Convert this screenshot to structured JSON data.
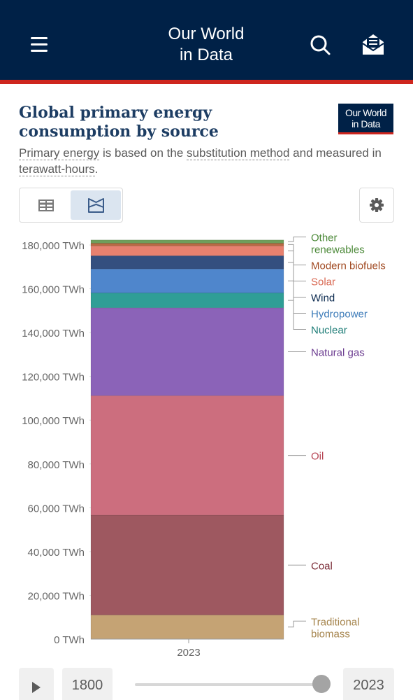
{
  "header": {
    "brand_line1": "Our World",
    "brand_line2": "in Data"
  },
  "logo": {
    "line1": "Our World",
    "line2": "in Data"
  },
  "title": "Global primary energy consumption by source",
  "subtitle": {
    "link1": "Primary energy",
    "text1": " is based on the ",
    "link2": "substitution method",
    "text2": " and measured in ",
    "link3": "terawatt-hours",
    "text3": "."
  },
  "timeline": {
    "start_year": "1800",
    "end_year": "2023",
    "position": 1.0
  },
  "colors": {
    "header_bg": "#002147",
    "accent_red": "#ce261e",
    "title": "#1d3d63"
  },
  "chart_data": {
    "type": "bar",
    "stacked": true,
    "categories": [
      "2023"
    ],
    "ylim": [
      0,
      180000
    ],
    "y_ticks": [
      "0 TWh",
      "20,000 TWh",
      "40,000 TWh",
      "60,000 TWh",
      "80,000 TWh",
      "100,000 TWh",
      "120,000 TWh",
      "140,000 TWh",
      "160,000 TWh",
      "180,000 TWh"
    ],
    "y_tick_values": [
      0,
      20000,
      40000,
      60000,
      80000,
      100000,
      120000,
      140000,
      160000,
      180000
    ],
    "grid": true,
    "series": [
      {
        "name": "Traditional biomass",
        "values": [
          11000
        ],
        "color": "#c5a374",
        "label_color": "#a6854e",
        "label_lines": [
          "Traditional",
          "biomass"
        ]
      },
      {
        "name": "Coal",
        "values": [
          45600
        ],
        "color": "#9e5860",
        "label_color": "#7a2b36",
        "label_lines": [
          "Coal"
        ]
      },
      {
        "name": "Oil",
        "values": [
          54600
        ],
        "color": "#cc6e7e",
        "label_color": "#b74554",
        "label_lines": [
          "Oil"
        ]
      },
      {
        "name": "Natural gas",
        "values": [
          40100
        ],
        "color": "#8b63b8",
        "label_color": "#6d3e91",
        "label_lines": [
          "Natural gas"
        ]
      },
      {
        "name": "Nuclear",
        "values": [
          6800
        ],
        "color": "#2f9e96",
        "label_color": "#1e7d77",
        "label_lines": [
          "Nuclear"
        ]
      },
      {
        "name": "Hydropower",
        "values": [
          11000
        ],
        "color": "#4f86cc",
        "label_color": "#3b7ab8",
        "label_lines": [
          "Hydropower"
        ]
      },
      {
        "name": "Wind",
        "values": [
          6000
        ],
        "color": "#344f7f",
        "label_color": "#0b2a4f",
        "label_lines": [
          "Wind"
        ]
      },
      {
        "name": "Solar",
        "values": [
          4500
        ],
        "color": "#e7816f",
        "label_color": "#d96a54",
        "label_lines": [
          "Solar"
        ]
      },
      {
        "name": "Modern biofuels",
        "values": [
          1200
        ],
        "color": "#b86a43",
        "label_color": "#a14b23",
        "label_lines": [
          "Modern biofuels"
        ]
      },
      {
        "name": "Other renewables",
        "values": [
          1500
        ],
        "color": "#6f9e5b",
        "label_color": "#4d8a3a",
        "label_lines": [
          "Other",
          "renewables"
        ]
      }
    ]
  }
}
